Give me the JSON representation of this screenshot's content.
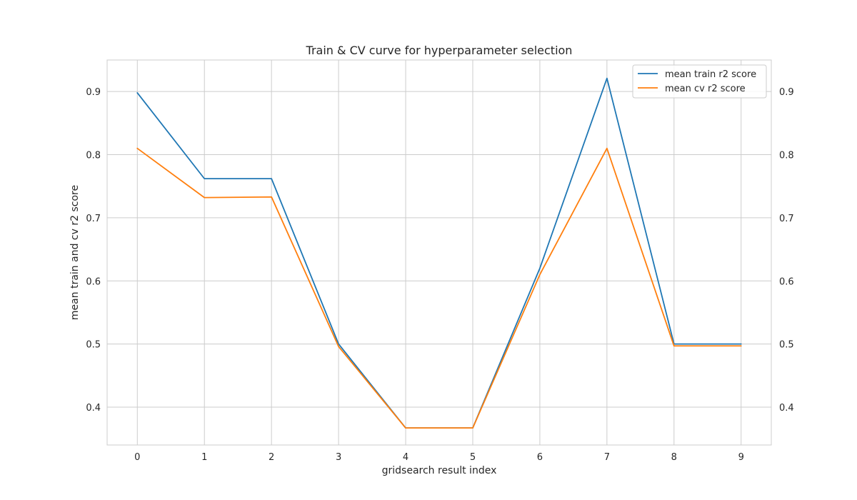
{
  "chart_data": {
    "type": "line",
    "title": "Train & CV curve for hyperparameter selection",
    "xlabel": "gridsearch result index",
    "ylabel": "mean train and cv r2 score",
    "x": [
      0,
      1,
      2,
      3,
      4,
      5,
      6,
      7,
      8,
      9
    ],
    "xticks": [
      "0",
      "1",
      "2",
      "3",
      "4",
      "5",
      "6",
      "7",
      "8",
      "9"
    ],
    "yticks": [
      "0.4",
      "0.5",
      "0.6",
      "0.7",
      "0.8",
      "0.9"
    ],
    "ytick_values": [
      0.4,
      0.5,
      0.6,
      0.7,
      0.8,
      0.9
    ],
    "xlim": [
      -0.45,
      9.45
    ],
    "ylim": [
      0.34,
      0.95
    ],
    "grid": true,
    "right_axis_ticks": true,
    "legend_position": "top-right",
    "series": [
      {
        "name": "mean train r2 score",
        "color": "#1f77b4",
        "values": [
          0.898,
          0.762,
          0.762,
          0.5,
          0.367,
          0.367,
          0.62,
          0.921,
          0.5,
          0.5
        ]
      },
      {
        "name": "mean cv r2 score",
        "color": "#ff7f0e",
        "values": [
          0.81,
          0.732,
          0.733,
          0.496,
          0.367,
          0.367,
          0.61,
          0.81,
          0.497,
          0.497
        ]
      }
    ]
  }
}
